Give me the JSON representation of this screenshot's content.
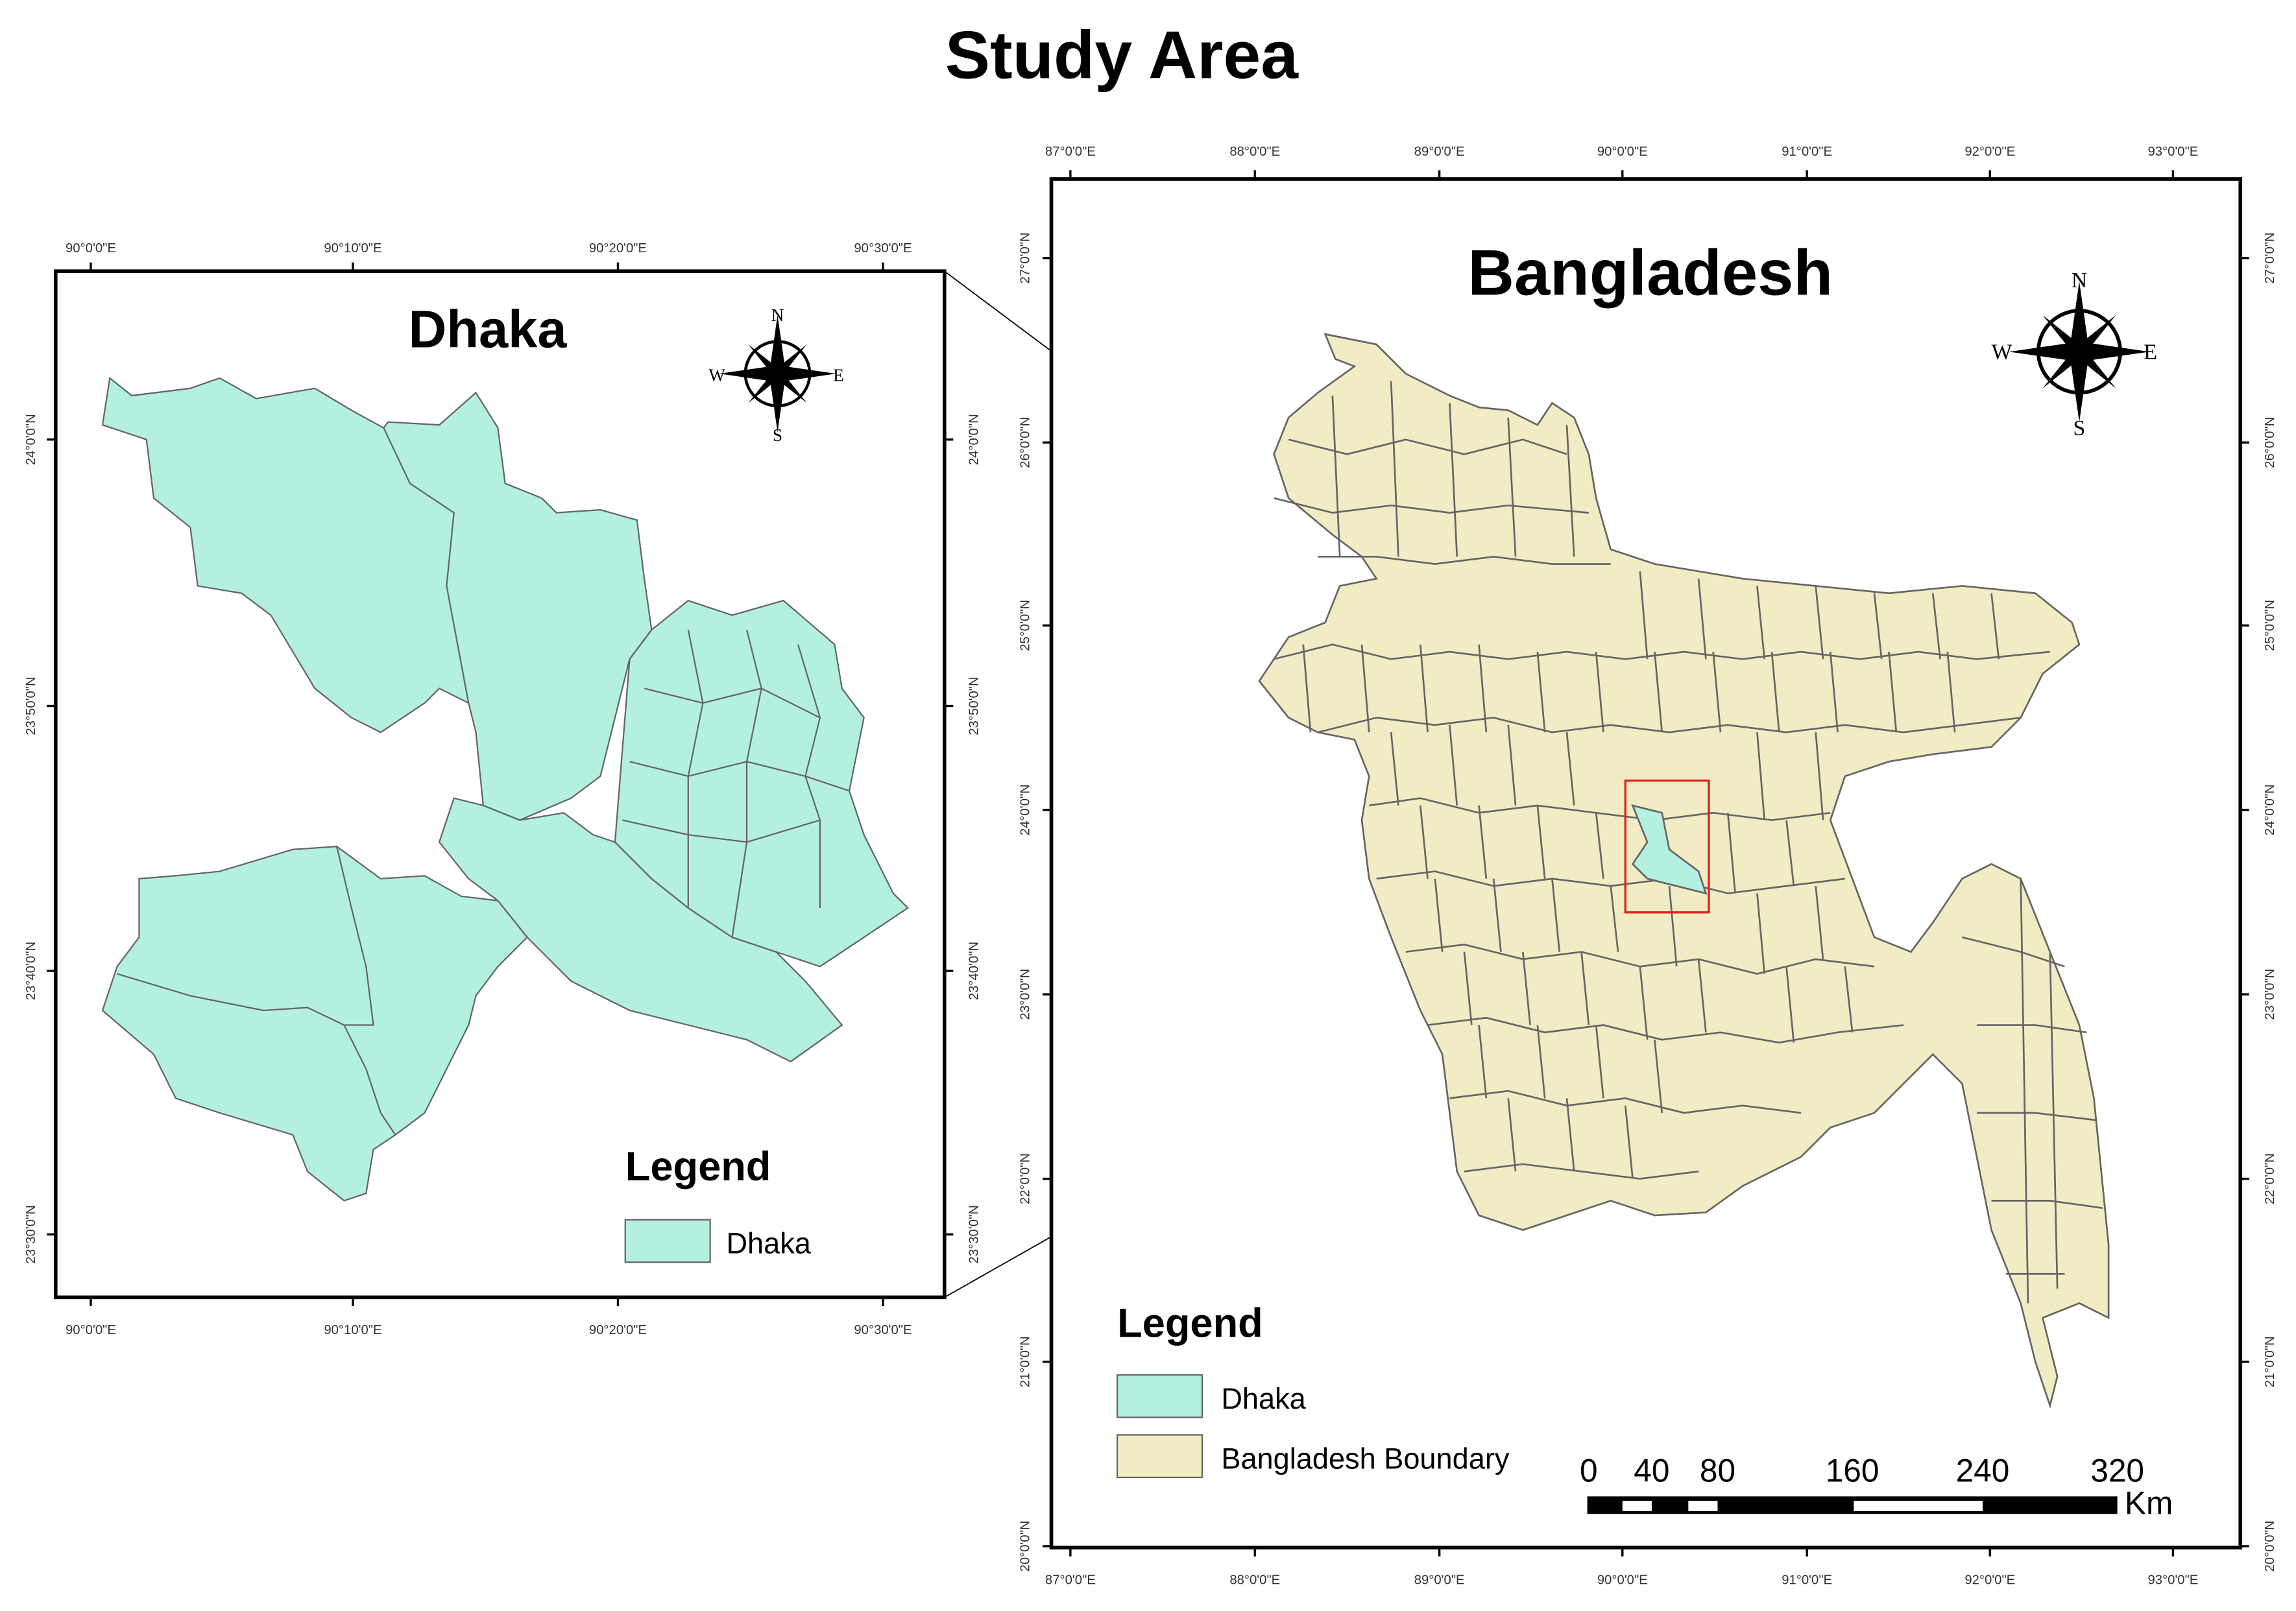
{
  "title": "Study Area",
  "colors": {
    "dhaka": "#b3f0df",
    "bangladesh": "#f2ecc4",
    "boundary": "#666666",
    "extent_box": "#e0241b"
  },
  "inset_map": {
    "title": "Dhaka",
    "x_ticks": [
      "90°0'0\"E",
      "90°10'0\"E",
      "90°20'0\"E",
      "90°30'0\"E"
    ],
    "y_ticks": [
      "24°0'0\"N",
      "23°50'0\"N",
      "23°40'0\"N",
      "23°30'0\"N"
    ],
    "north_arrow": {
      "n": "N",
      "s": "S",
      "e": "E",
      "w": "W"
    },
    "legend": {
      "title": "Legend",
      "items": [
        {
          "label": "Dhaka",
          "color": "#b3f0df"
        }
      ]
    }
  },
  "main_map": {
    "title": "Bangladesh",
    "x_ticks": [
      "87°0'0\"E",
      "88°0'0\"E",
      "89°0'0\"E",
      "90°0'0\"E",
      "91°0'0\"E",
      "92°0'0\"E",
      "93°0'0\"E"
    ],
    "y_ticks": [
      "27°0'0\"N",
      "26°0'0\"N",
      "25°0'0\"N",
      "24°0'0\"N",
      "23°0'0\"N",
      "22°0'0\"N",
      "21°0'0\"N",
      "20°0'0\"N"
    ],
    "north_arrow": {
      "n": "N",
      "s": "S",
      "e": "E",
      "w": "W"
    },
    "legend": {
      "title": "Legend",
      "items": [
        {
          "label": "Dhaka",
          "color": "#b3f0df"
        },
        {
          "label": "Bangladesh Boundary",
          "color": "#f2ecc4"
        }
      ]
    },
    "scale_bar": {
      "labels": [
        "0",
        "40",
        "80",
        "160",
        "240",
        "320"
      ],
      "unit": "Km"
    }
  }
}
